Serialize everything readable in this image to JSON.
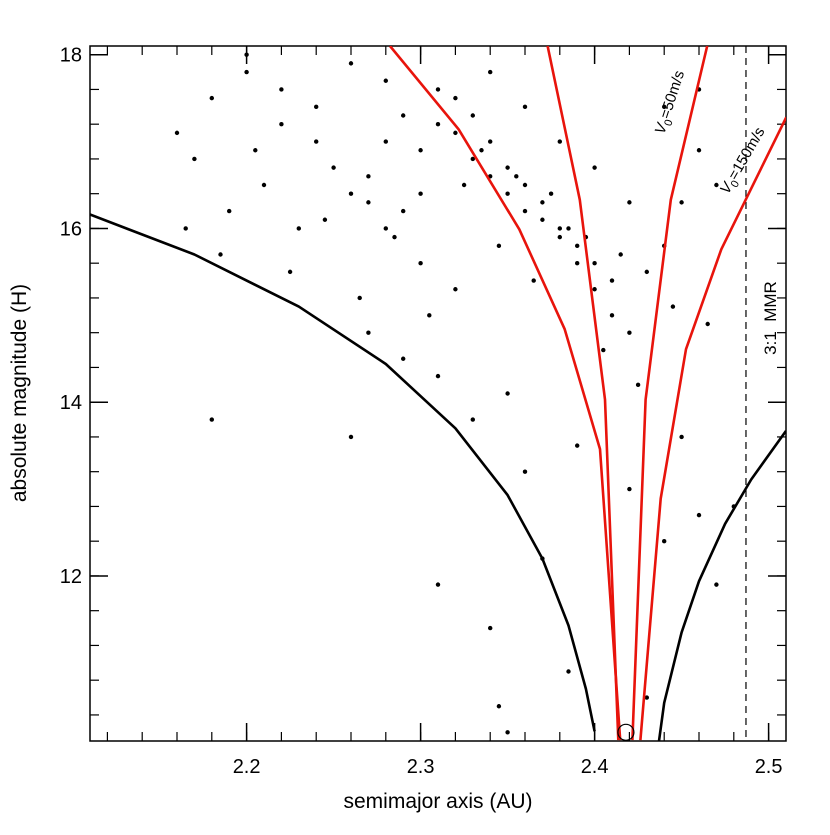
{
  "chart_data": {
    "type": "scatter",
    "xlabel": "semimajor axis (AU)",
    "ylabel": "absolute magnitude (H)",
    "xlim": [
      2.11,
      2.51
    ],
    "ylim": [
      10.1,
      18.1
    ],
    "xticks": [
      2.2,
      2.3,
      2.4,
      2.5
    ],
    "yticks": [
      12,
      14,
      16,
      18
    ],
    "point_color": "#000000",
    "x": [
      2.16,
      2.17,
      2.18,
      2.19,
      2.2,
      2.21,
      2.22,
      2.23,
      2.24,
      2.25,
      2.26,
      2.27,
      2.28,
      2.29,
      2.3,
      2.31,
      2.32,
      2.33,
      2.34,
      2.35,
      2.36,
      2.37,
      2.38,
      2.39,
      2.4,
      2.41,
      2.42,
      2.43,
      2.44,
      2.45,
      2.46,
      2.47,
      2.165,
      2.185,
      2.205,
      2.225,
      2.245,
      2.265,
      2.285,
      2.305,
      2.325,
      2.345,
      2.365,
      2.385,
      2.405,
      2.425,
      2.445,
      2.465,
      2.27,
      2.29,
      2.31,
      2.33,
      2.35,
      2.36,
      2.39,
      2.42,
      2.45,
      2.48,
      2.18,
      2.26,
      2.31,
      2.34,
      2.345,
      2.37,
      2.385,
      2.44,
      2.47,
      2.35,
      2.43,
      2.46,
      2.33,
      2.34,
      2.35,
      2.36,
      2.37,
      2.38,
      2.39,
      2.4,
      2.41,
      2.335,
      2.355,
      2.375,
      2.395,
      2.415,
      2.32,
      2.31,
      2.3,
      2.29,
      2.28,
      2.27,
      2.2,
      2.22,
      2.24,
      2.26,
      2.28,
      2.3,
      2.32,
      2.34,
      2.36,
      2.38,
      2.4,
      2.42,
      2.44,
      2.46
    ],
    "values": [
      17.1,
      16.8,
      17.5,
      16.2,
      17.8,
      16.5,
      17.2,
      16.0,
      17.4,
      16.7,
      17.9,
      16.3,
      17.0,
      17.3,
      16.9,
      17.6,
      17.1,
      16.8,
      16.6,
      16.4,
      16.2,
      16.1,
      15.9,
      15.6,
      15.3,
      15.0,
      14.8,
      15.5,
      15.8,
      16.3,
      16.9,
      16.5,
      16.0,
      15.7,
      16.9,
      15.5,
      16.1,
      15.2,
      15.9,
      15.0,
      16.5,
      15.8,
      15.4,
      16.0,
      14.6,
      14.2,
      15.1,
      14.9,
      14.8,
      14.5,
      14.3,
      13.8,
      14.1,
      13.2,
      13.5,
      13.0,
      13.6,
      12.8,
      13.8,
      13.6,
      11.9,
      11.4,
      10.5,
      12.2,
      10.9,
      12.4,
      11.9,
      10.2,
      10.6,
      12.7,
      17.3,
      17.0,
      16.7,
      16.5,
      16.3,
      16.0,
      15.8,
      15.6,
      15.4,
      16.9,
      16.6,
      16.4,
      15.9,
      15.7,
      17.5,
      17.2,
      16.4,
      16.2,
      17.7,
      16.6,
      18.0,
      17.6,
      17.0,
      16.4,
      16.0,
      15.6,
      15.3,
      17.8,
      17.4,
      17.0,
      16.7,
      16.3,
      17.4,
      17.6
    ],
    "curves": [
      {
        "color": "#000000",
        "x": [
          2.11,
          2.17,
          2.23,
          2.28,
          2.32,
          2.35,
          2.37,
          2.385,
          2.395,
          2.4
        ],
        "values": [
          16.16,
          15.7,
          15.1,
          14.44,
          13.7,
          12.93,
          12.2,
          11.43,
          10.7,
          10.21
        ]
      },
      {
        "color": "#000000",
        "x": [
          2.437,
          2.44,
          2.45,
          2.46,
          2.475,
          2.49,
          2.51
        ],
        "values": [
          10.1,
          10.54,
          11.35,
          11.94,
          12.6,
          13.11,
          13.67
        ]
      },
      {
        "color": "#e8140c",
        "x": [
          2.2824,
          2.3219,
          2.3567,
          2.3828,
          2.4031,
          2.4147
        ],
        "values": [
          18.1,
          17.14,
          15.99,
          14.84,
          13.46,
          10.11
        ]
      },
      {
        "color": "#e8140c",
        "x": [
          2.373,
          2.3915,
          2.406,
          2.4136
        ],
        "values": [
          18.1,
          16.33,
          14.03,
          10.11
        ]
      },
      {
        "color": "#e8140c",
        "x": [
          2.4647,
          2.4438,
          2.4293,
          2.4217
        ],
        "values": [
          18.1,
          16.33,
          14.03,
          10.11
        ]
      },
      {
        "color": "#e8140c",
        "x": [
          2.5102,
          2.4728,
          2.4525,
          2.438,
          2.4263
        ],
        "values": [
          17.28,
          15.76,
          14.61,
          12.89,
          10.11
        ]
      }
    ],
    "family_center": {
      "x": 2.418,
      "y": 10.2
    },
    "mmr_line": 2.487,
    "annotations": [
      {
        "symbol": "V",
        "sub": "0",
        "rest": "=50m/s"
      },
      {
        "symbol": "V",
        "sub": "0",
        "rest": "=150m/s"
      },
      {
        "text": "3:1  MMR"
      }
    ]
  }
}
